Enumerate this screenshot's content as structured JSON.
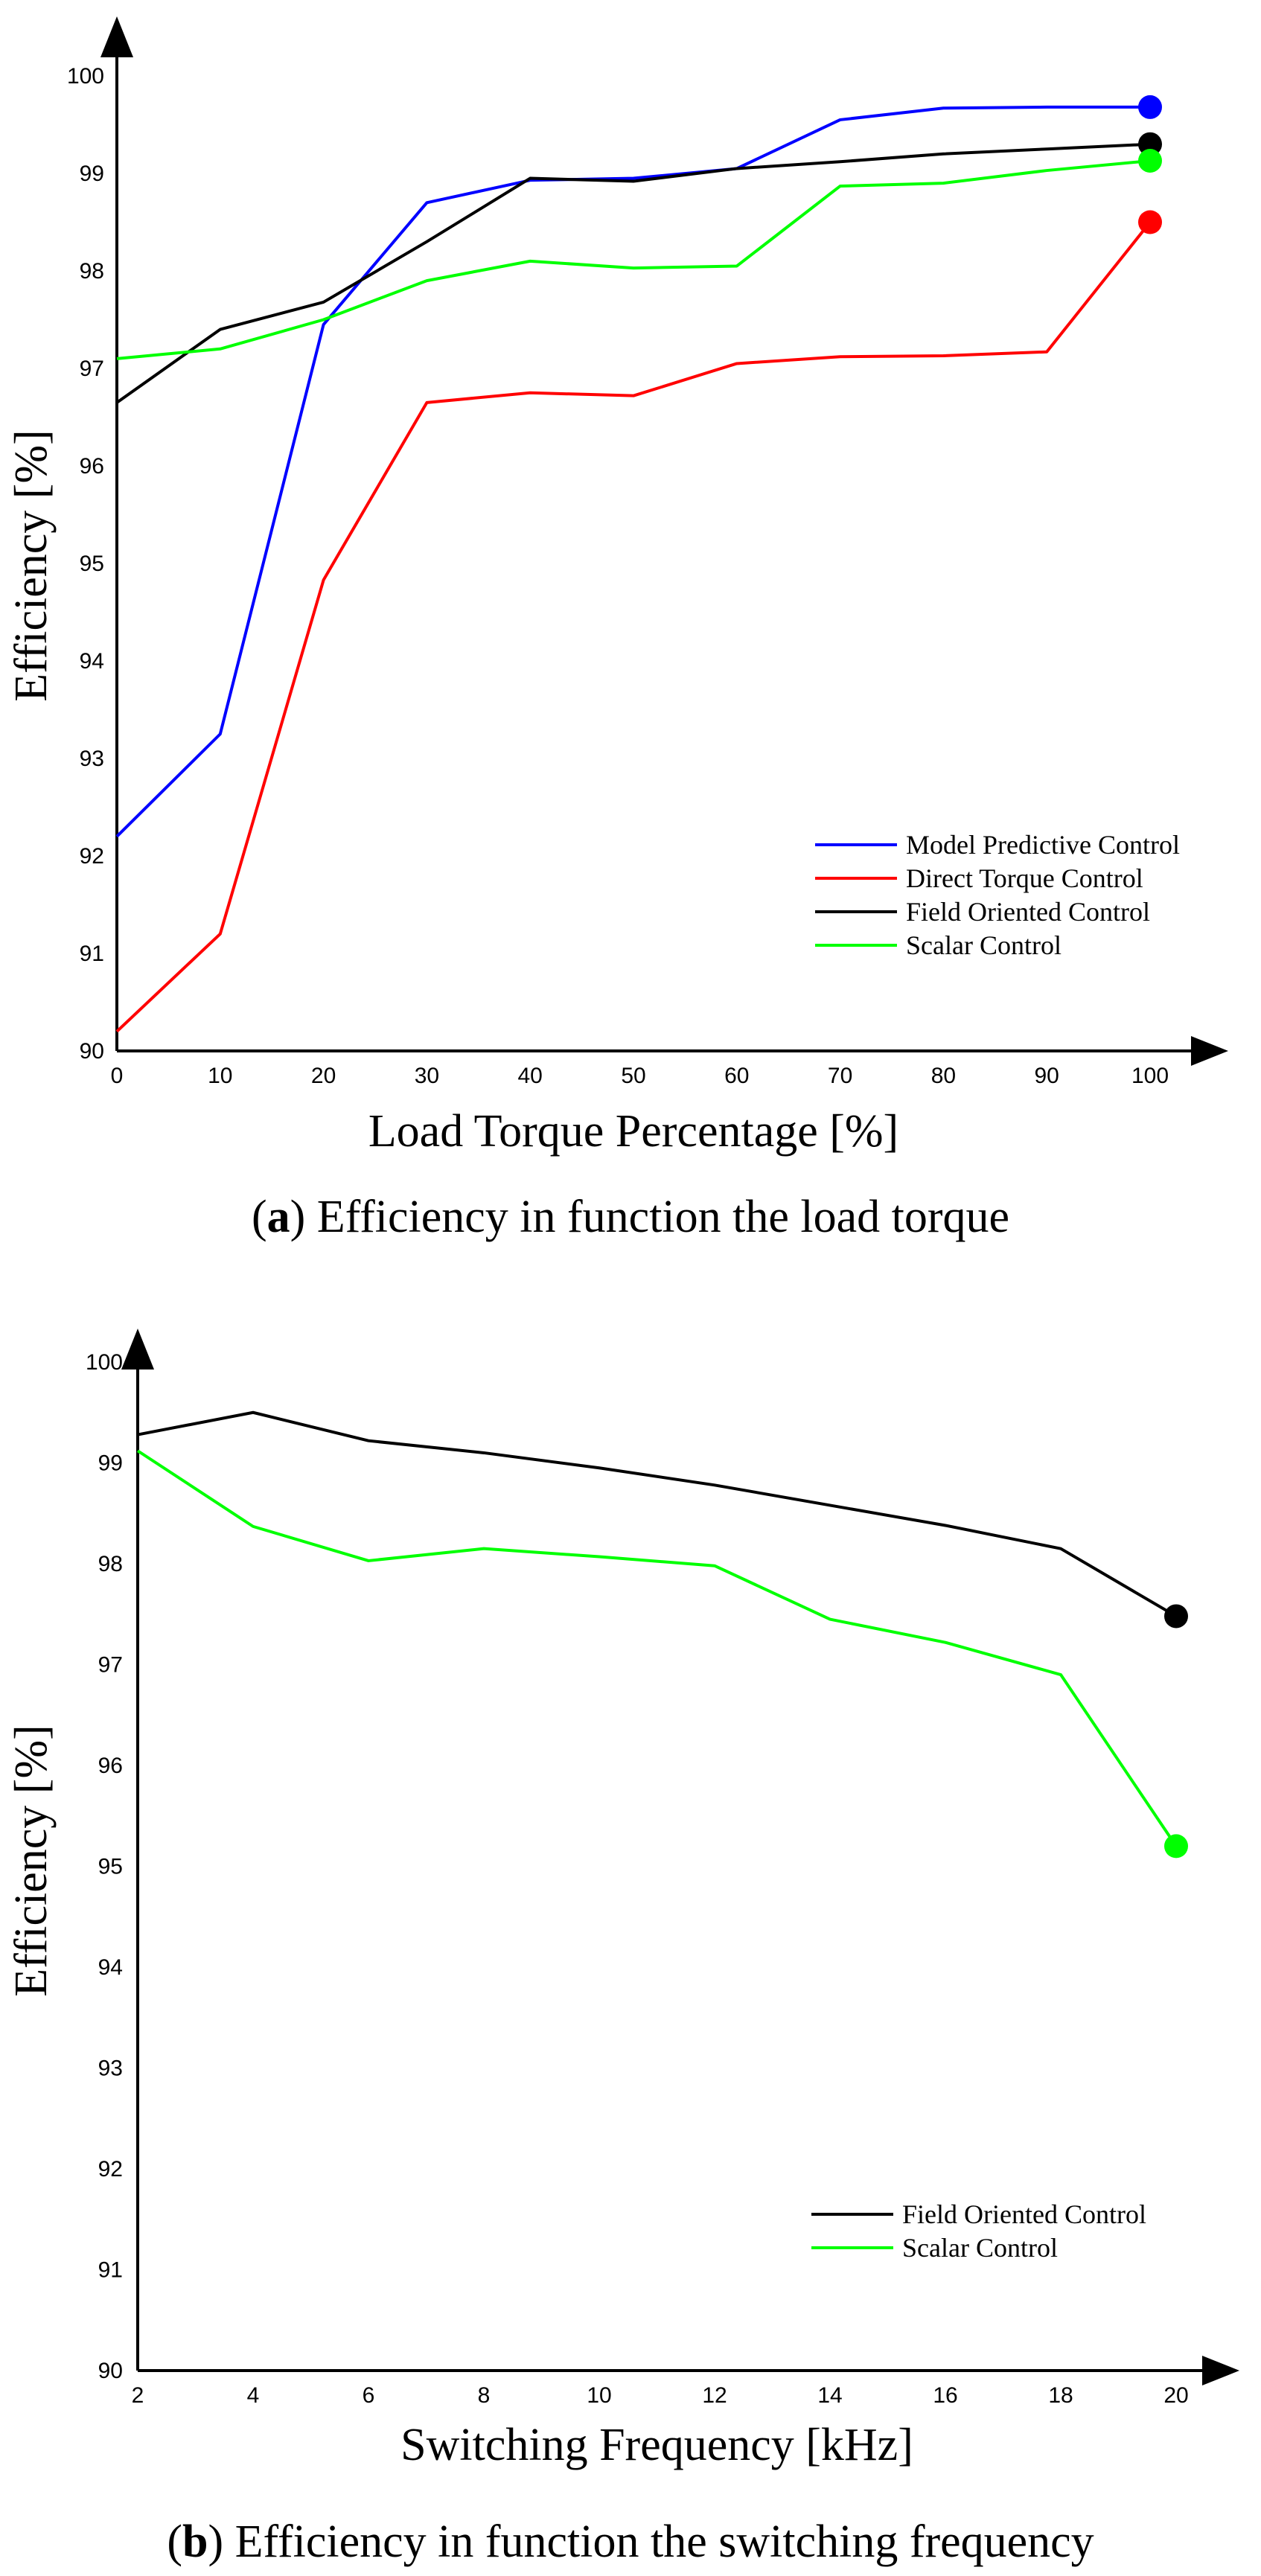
{
  "chart_data": [
    {
      "type": "line",
      "panel": "a",
      "xlabel": "Load Torque Percentage [%]",
      "ylabel": "Efficiency [%]",
      "xlim": [
        0,
        100
      ],
      "ylim": [
        90,
        100
      ],
      "xticks": [
        "0",
        "10",
        "20",
        "30",
        "40",
        "50",
        "60",
        "70",
        "80",
        "90",
        "100"
      ],
      "yticks": [
        "90",
        "91",
        "92",
        "93",
        "94",
        "95",
        "96",
        "97",
        "98",
        "99",
        "100"
      ],
      "x": [
        0,
        10,
        20,
        30,
        40,
        50,
        60,
        70,
        80,
        90,
        100
      ],
      "legend_position": "bottom-right",
      "series": [
        {
          "name": "Model Predictive Control",
          "color": "#0000ff",
          "values": [
            92.2,
            93.25,
            97.45,
            98.7,
            98.93,
            98.95,
            99.05,
            99.55,
            99.67,
            99.68,
            99.68
          ]
        },
        {
          "name": "Direct Torque Control",
          "color": "#ff0000",
          "values": [
            90.2,
            91.2,
            94.83,
            96.65,
            96.75,
            96.72,
            97.05,
            97.12,
            97.13,
            97.17,
            98.5
          ]
        },
        {
          "name": "Field Oriented Control",
          "color": "#000000",
          "values": [
            96.65,
            97.4,
            97.68,
            98.3,
            98.95,
            98.92,
            99.05,
            99.12,
            99.2,
            99.25,
            99.3
          ]
        },
        {
          "name": "Scalar Control",
          "color": "#00ff00",
          "values": [
            97.1,
            97.2,
            97.5,
            97.9,
            98.1,
            98.03,
            98.05,
            98.87,
            98.9,
            99.03,
            99.13
          ]
        }
      ],
      "caption_label": "a",
      "caption_text": "Efficiency in function the load torque"
    },
    {
      "type": "line",
      "panel": "b",
      "xlabel": "Switching Frequency [kHz]",
      "ylabel": "Efficiency [%]",
      "xlim": [
        2,
        20
      ],
      "ylim": [
        90,
        100
      ],
      "xticks": [
        "2",
        "4",
        "6",
        "8",
        "10",
        "12",
        "14",
        "16",
        "18",
        "20"
      ],
      "yticks": [
        "90",
        "91",
        "92",
        "93",
        "94",
        "95",
        "96",
        "97",
        "98",
        "99",
        "100"
      ],
      "x": [
        2,
        4,
        6,
        8,
        10,
        12,
        14,
        16,
        18,
        20
      ],
      "legend_position": "bottom-right",
      "series": [
        {
          "name": "Field Oriented Control",
          "color": "#000000",
          "values": [
            99.28,
            99.5,
            99.22,
            99.1,
            98.95,
            98.78,
            98.58,
            98.38,
            98.15,
            97.48
          ]
        },
        {
          "name": "Scalar Control",
          "color": "#00ff00",
          "values": [
            99.12,
            98.37,
            98.03,
            98.15,
            98.07,
            97.98,
            97.45,
            97.22,
            96.9,
            95.2
          ]
        }
      ],
      "caption_label": "b",
      "caption_text": "Efficiency in function the switching frequency"
    }
  ]
}
